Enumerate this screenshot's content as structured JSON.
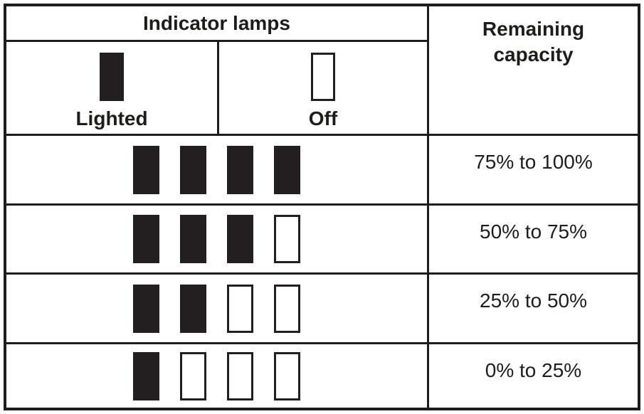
{
  "page": {
    "background": "#ffffff",
    "ink": "#1d1d1b",
    "lamp_fill": "#231f20"
  },
  "table": {
    "header": {
      "indicator_lamps": "Indicator lamps",
      "remaining_capacity": "Remaining capacity"
    },
    "legend": {
      "lighted": {
        "label": "Lighted",
        "state": "on"
      },
      "off": {
        "label": "Off",
        "state": "off"
      }
    },
    "rows": [
      {
        "lamps": [
          "on",
          "on",
          "on",
          "on"
        ],
        "capacity": "75% to 100%"
      },
      {
        "lamps": [
          "on",
          "on",
          "on",
          "off"
        ],
        "capacity": "50% to 75%"
      },
      {
        "lamps": [
          "on",
          "on",
          "off",
          "off"
        ],
        "capacity": "25% to 50%"
      },
      {
        "lamps": [
          "on",
          "off",
          "off",
          "off"
        ],
        "capacity": "0% to 25%"
      }
    ]
  }
}
